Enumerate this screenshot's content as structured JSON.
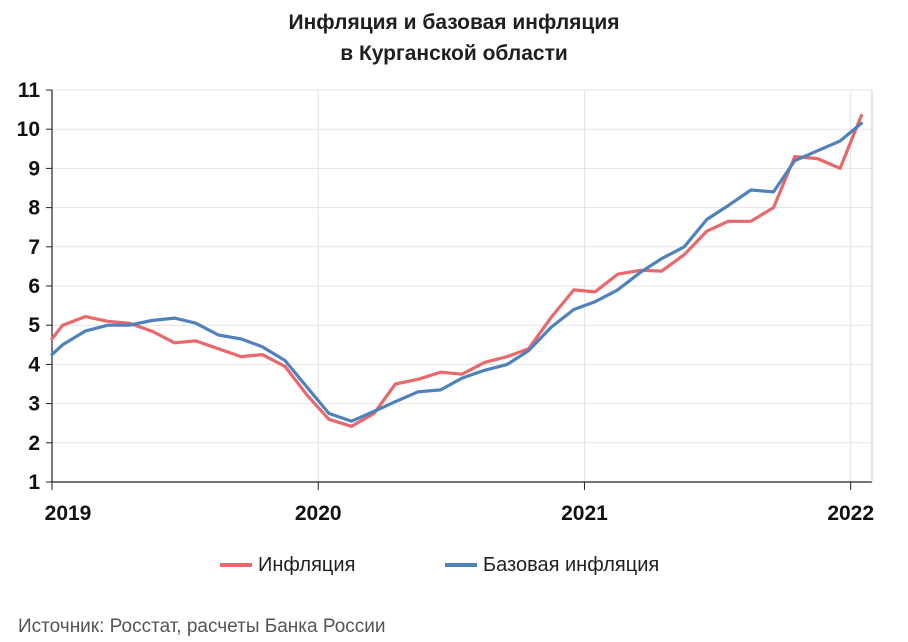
{
  "chart_data": {
    "type": "line",
    "title": "Инфляция и базовая инфляция",
    "subtitle": "в  Курганской области",
    "xlabel": "",
    "ylabel": "",
    "ylim": [
      1,
      11
    ],
    "yticks": [
      1,
      2,
      3,
      4,
      5,
      6,
      7,
      8,
      9,
      10,
      11
    ],
    "xlim": [
      2019.0,
      2022.08
    ],
    "xtick_labels": [
      "2019",
      "2020",
      "2021",
      "2022"
    ],
    "xticks": [
      2019,
      2020,
      2021,
      2022
    ],
    "grid": true,
    "legend_position": "bottom",
    "series": [
      {
        "name": "Инфляция",
        "color": "#e8686b",
        "x": [
          2019.0,
          2019.04,
          2019.125,
          2019.21,
          2019.29,
          2019.375,
          2019.46,
          2019.54,
          2019.625,
          2019.71,
          2019.79,
          2019.875,
          2019.96,
          2020.04,
          2020.125,
          2020.21,
          2020.29,
          2020.375,
          2020.46,
          2020.54,
          2020.625,
          2020.71,
          2020.79,
          2020.875,
          2020.96,
          2021.04,
          2021.125,
          2021.21,
          2021.29,
          2021.375,
          2021.46,
          2021.54,
          2021.625,
          2021.71,
          2021.79,
          2021.875,
          2021.96,
          2022.04
        ],
        "values": [
          4.65,
          5.0,
          5.22,
          5.1,
          5.05,
          4.85,
          4.55,
          4.6,
          4.4,
          4.2,
          4.25,
          3.95,
          3.2,
          2.6,
          2.42,
          2.75,
          3.5,
          3.62,
          3.8,
          3.75,
          4.05,
          4.2,
          4.4,
          5.2,
          5.9,
          5.85,
          6.3,
          6.4,
          6.38,
          6.8,
          7.4,
          7.65,
          7.65,
          8.0,
          9.3,
          9.25,
          9.0,
          10.35
        ]
      },
      {
        "name": "Базовая инфляция",
        "color": "#4f81bd",
        "x": [
          2019.0,
          2019.04,
          2019.125,
          2019.21,
          2019.29,
          2019.375,
          2019.46,
          2019.54,
          2019.625,
          2019.71,
          2019.79,
          2019.875,
          2019.96,
          2020.04,
          2020.125,
          2020.21,
          2020.29,
          2020.375,
          2020.46,
          2020.54,
          2020.625,
          2020.71,
          2020.79,
          2020.875,
          2020.96,
          2021.04,
          2021.125,
          2021.21,
          2021.29,
          2021.375,
          2021.46,
          2021.54,
          2021.625,
          2021.71,
          2021.79,
          2021.875,
          2021.96,
          2022.04
        ],
        "values": [
          4.25,
          4.5,
          4.85,
          5.0,
          5.0,
          5.12,
          5.18,
          5.05,
          4.75,
          4.65,
          4.45,
          4.1,
          3.4,
          2.75,
          2.55,
          2.8,
          3.05,
          3.3,
          3.35,
          3.65,
          3.85,
          4.0,
          4.35,
          4.95,
          5.4,
          5.6,
          5.9,
          6.35,
          6.7,
          7.0,
          7.7,
          8.05,
          8.45,
          8.4,
          9.2,
          9.45,
          9.7,
          10.15
        ]
      }
    ],
    "source": "Источник: Росстат, расчеты Банка России"
  }
}
